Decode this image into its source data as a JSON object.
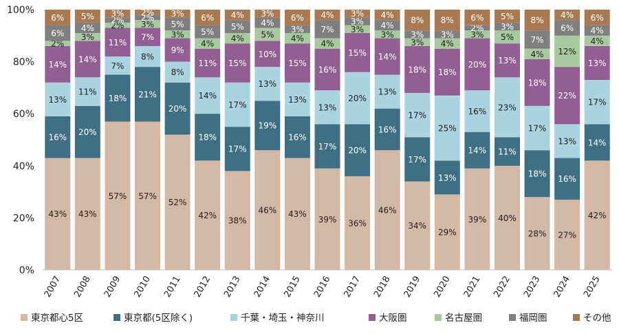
{
  "chart_data": {
    "type": "bar",
    "stacked": true,
    "percent": true,
    "categories": [
      "2007",
      "2008",
      "2009",
      "2010",
      "2011",
      "2012",
      "2013",
      "2014",
      "2015",
      "2016",
      "2017",
      "2018",
      "2019",
      "2020",
      "2021",
      "2022",
      "2023",
      "2024",
      "2025"
    ],
    "ylim": [
      0,
      100
    ],
    "yticks": [
      "0%",
      "20%",
      "40%",
      "60%",
      "80%",
      "100%"
    ],
    "grid": false,
    "legend_position": "bottom",
    "series": [
      {
        "name": "東京都心5区",
        "color": "#d4b8a6",
        "label_color": "#222222",
        "values": [
          43,
          43,
          57,
          57,
          52,
          42,
          38,
          46,
          43,
          39,
          36,
          46,
          34,
          29,
          39,
          40,
          28,
          27,
          42
        ]
      },
      {
        "name": "東京都(5区除く)",
        "color": "#3f6f85",
        "label_color": "#ffffff",
        "values": [
          16,
          20,
          18,
          21,
          20,
          18,
          17,
          19,
          16,
          17,
          20,
          16,
          17,
          13,
          14,
          11,
          18,
          16,
          14
        ]
      },
      {
        "name": "千葉・埼玉・神奈川",
        "color": "#a9d3de",
        "label_color": "#222222",
        "values": [
          13,
          11,
          7,
          8,
          8,
          14,
          17,
          13,
          13,
          13,
          20,
          13,
          17,
          25,
          16,
          23,
          17,
          13,
          17
        ]
      },
      {
        "name": "大阪圏",
        "color": "#925e94",
        "label_color": "#ffffff",
        "values": [
          14,
          14,
          11,
          7,
          9,
          11,
          15,
          10,
          15,
          16,
          15,
          14,
          18,
          18,
          20,
          13,
          18,
          22,
          13
        ]
      },
      {
        "name": "名古屋圏",
        "color": "#a8c9a0",
        "label_color": "#222222",
        "values": [
          2,
          3,
          2,
          3,
          3,
          4,
          4,
          5,
          4,
          4,
          3,
          3,
          3,
          4,
          3,
          5,
          4,
          12,
          4
        ]
      },
      {
        "name": "福岡圏",
        "color": "#7f7f7f",
        "label_color": "#ffffff",
        "values": [
          6,
          4,
          2,
          2,
          5,
          5,
          5,
          4,
          3,
          7,
          3,
          4,
          3,
          3,
          2,
          3,
          7,
          6,
          4
        ]
      },
      {
        "name": "その他",
        "color": "#a97a52",
        "label_color": "#ffffff",
        "values": [
          6,
          5,
          3,
          2,
          3,
          6,
          4,
          3,
          6,
          4,
          3,
          4,
          8,
          8,
          6,
          5,
          8,
          4,
          6
        ]
      }
    ]
  }
}
